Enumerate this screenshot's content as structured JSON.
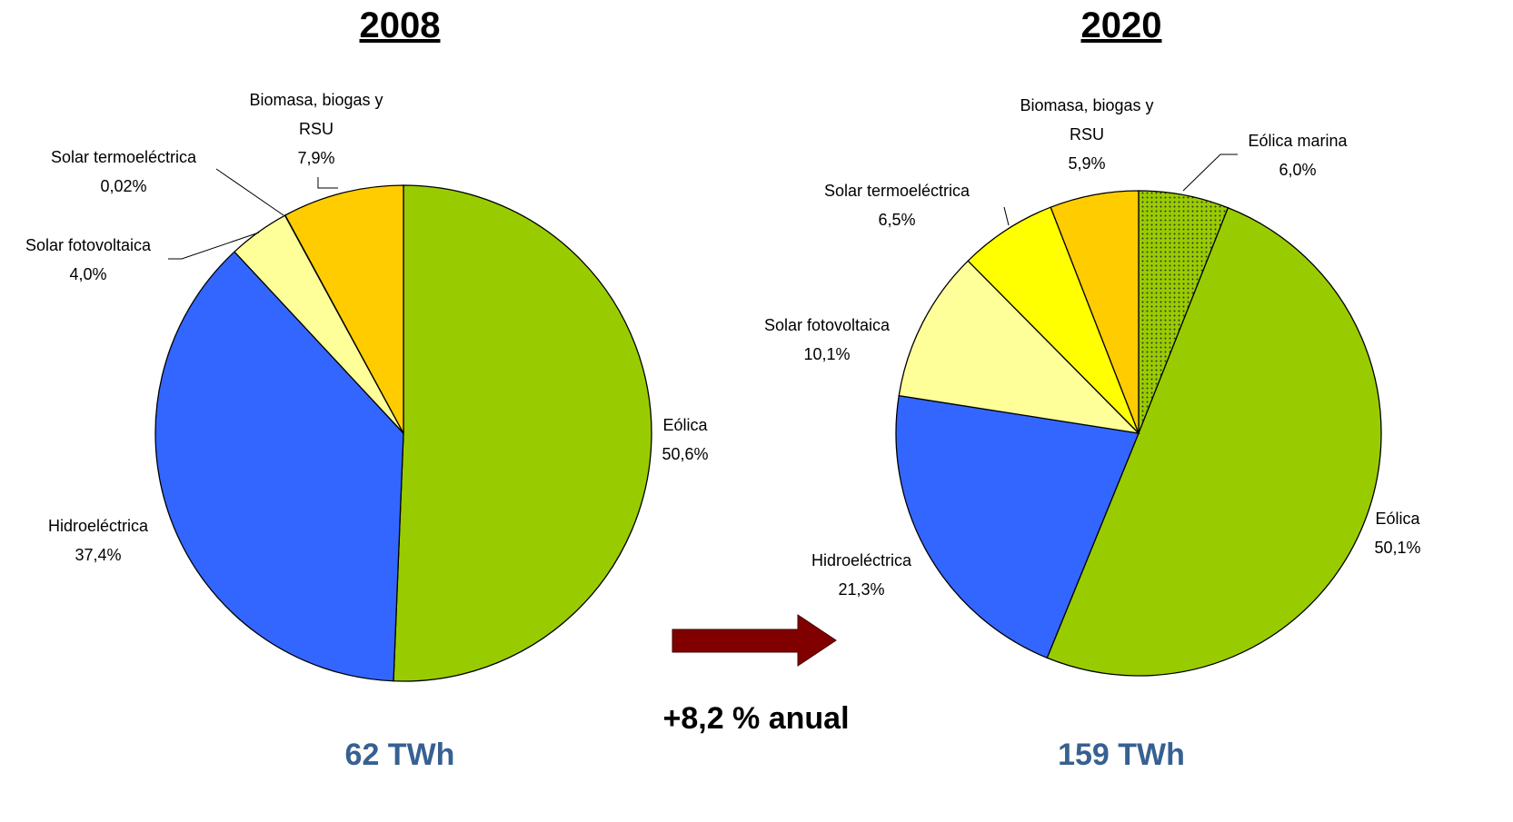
{
  "chart_data": [
    {
      "type": "pie",
      "title": "2008",
      "categories": [
        "Eólica",
        "Hidroeléctrica",
        "Solar fotovoltaica",
        "Solar termoeléctrica",
        "Biomasa, biogas y RSU"
      ],
      "values": [
        50.6,
        37.4,
        4.0,
        0.02,
        7.9
      ],
      "value_labels": [
        "50,6%",
        "37,4%",
        "4,0%",
        "0,02%",
        "7,9%"
      ],
      "colors": [
        "#99cc00",
        "#3366ff",
        "#ffff99",
        "#ffff00",
        "#ffcc00"
      ],
      "total": "62 TWh"
    },
    {
      "type": "pie",
      "title": "2020",
      "categories": [
        "Eólica marina",
        "Eólica",
        "Hidroeléctrica",
        "Solar fotovoltaica",
        "Solar termoeléctrica",
        "Biomasa, biogas y RSU"
      ],
      "values": [
        6.0,
        50.1,
        21.3,
        10.1,
        6.5,
        5.9
      ],
      "value_labels": [
        "6,0%",
        "50,1%",
        "21,3%",
        "10,1%",
        "6,5%",
        "5,9%"
      ],
      "colors": [
        "#99cc00",
        "#99cc00",
        "#3366ff",
        "#ffff99",
        "#ffff00",
        "#ffcc00"
      ],
      "patterns": [
        "dots",
        null,
        null,
        null,
        null,
        null
      ],
      "total": "159 TWh"
    }
  ],
  "annotation": "+8,2 % anual"
}
